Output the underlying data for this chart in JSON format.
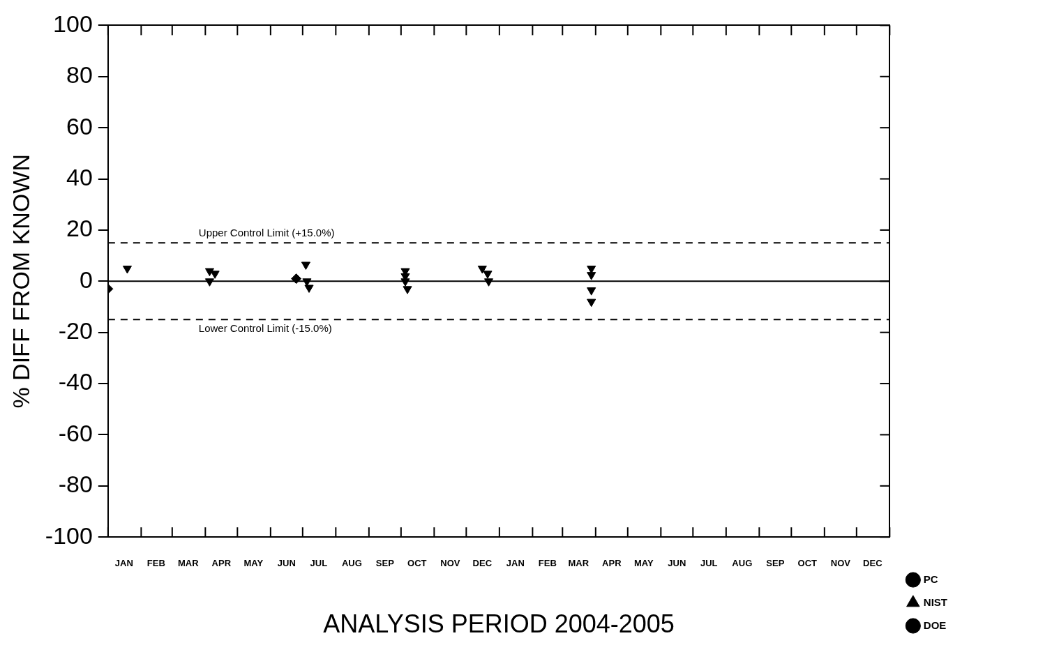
{
  "chart_data": {
    "type": "scatter",
    "xlabel": "ANALYSIS PERIOD 2004-2005",
    "ylabel": "% DIFF FROM KNOWN",
    "xlim": [
      "2004-01-01",
      "2006-01-01"
    ],
    "ylim": [
      -100,
      100
    ],
    "yticks": [
      -100,
      -80,
      -60,
      -40,
      -20,
      0,
      20,
      40,
      60,
      80,
      100
    ],
    "xticks": [
      {
        "value": "2004-01-16",
        "label": "JAN"
      },
      {
        "value": "2004-02-15",
        "label": "FEB"
      },
      {
        "value": "2004-03-16",
        "label": "MAR"
      },
      {
        "value": "2004-04-16",
        "label": "APR"
      },
      {
        "value": "2004-05-16",
        "label": "MAY"
      },
      {
        "value": "2004-06-16",
        "label": "JUN"
      },
      {
        "value": "2004-07-16",
        "label": "JUL"
      },
      {
        "value": "2004-08-16",
        "label": "AUG"
      },
      {
        "value": "2004-09-16",
        "label": "SEP"
      },
      {
        "value": "2004-10-16",
        "label": "OCT"
      },
      {
        "value": "2004-11-16",
        "label": "NOV"
      },
      {
        "value": "2004-12-16",
        "label": "DEC"
      },
      {
        "value": "2005-01-16",
        "label": "JAN"
      },
      {
        "value": "2005-02-15",
        "label": "FEB"
      },
      {
        "value": "2005-03-16",
        "label": "MAR"
      },
      {
        "value": "2005-04-16",
        "label": "APR"
      },
      {
        "value": "2005-05-16",
        "label": "MAY"
      },
      {
        "value": "2005-06-16",
        "label": "JUN"
      },
      {
        "value": "2005-07-16",
        "label": "JUL"
      },
      {
        "value": "2005-08-16",
        "label": "AUG"
      },
      {
        "value": "2005-09-16",
        "label": "SEP"
      },
      {
        "value": "2005-10-16",
        "label": "OCT"
      },
      {
        "value": "2005-11-16",
        "label": "NOV"
      },
      {
        "value": "2005-12-16",
        "label": "DEC"
      }
    ],
    "grid": false,
    "legend": "bottom right",
    "series": [
      {
        "color": "#000000",
        "marker": "diamond",
        "x": [
          "2004-01-01",
          "2004-06-25"
        ],
        "values": [
          -3,
          1
        ]
      },
      {
        "name": "PC",
        "color": "#000000",
        "marker": "circle"
      },
      {
        "name": "NIST",
        "color": "#000000",
        "marker": "triangle"
      },
      {
        "color": "#000000",
        "marker": "triangle-down",
        "x": [
          "2004-01-19",
          "2004-04-05",
          "2004-04-10",
          "2004-04-05",
          "2004-07-04",
          "2004-07-05",
          "2004-07-07",
          "2004-10-05",
          "2004-10-05",
          "2004-10-05",
          "2004-10-07",
          "2004-12-16",
          "2004-12-21",
          "2004-12-22",
          "2005-03-28",
          "2005-03-28",
          "2005-03-28",
          "2005-03-28"
        ],
        "values": [
          5,
          4,
          3,
          0,
          6.5,
          0,
          -2.5,
          4,
          2,
          0,
          -3,
          5,
          3,
          0,
          5,
          2.5,
          -3.5,
          -8
        ]
      },
      {
        "name": "DOE",
        "color": "#000000",
        "marker": "circle"
      }
    ],
    "ref_lines": [
      {
        "axis": "y",
        "value": 15,
        "label": "Upper Control Limit (+15.0%)",
        "line_style": "dashed"
      },
      {
        "axis": "y",
        "value": 0,
        "line_style": "solid"
      },
      {
        "axis": "y",
        "value": -15,
        "label": "Lower Control Limit (-15.0%)",
        "line_style": "dashed"
      }
    ]
  }
}
